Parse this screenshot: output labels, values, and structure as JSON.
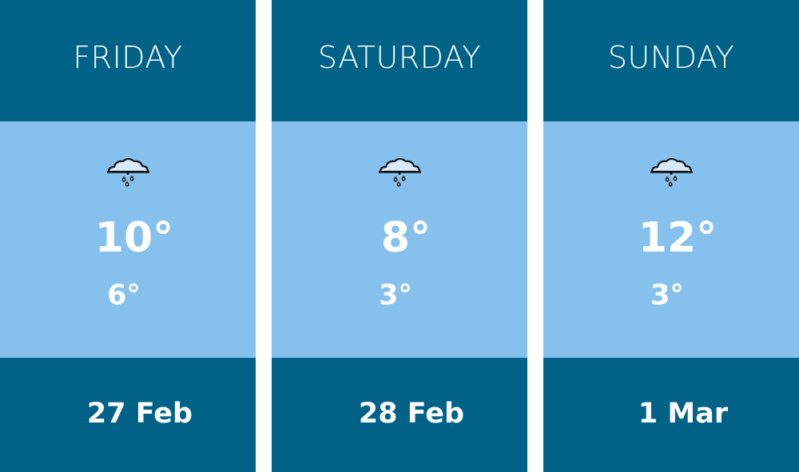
{
  "colors": {
    "header": "#006286",
    "body": "#86c1ed",
    "text": "#ffffff"
  },
  "days": [
    {
      "day": "FRIDAY",
      "icon": "rain-cloud-icon",
      "high": "10°",
      "low": "6°",
      "date": "27 Feb"
    },
    {
      "day": "SATURDAY",
      "icon": "rain-cloud-icon",
      "high": "8°",
      "low": "3°",
      "date": "28 Feb"
    },
    {
      "day": "SUNDAY",
      "icon": "rain-cloud-icon",
      "high": "12°",
      "low": "3°",
      "date": "1 Mar"
    }
  ]
}
